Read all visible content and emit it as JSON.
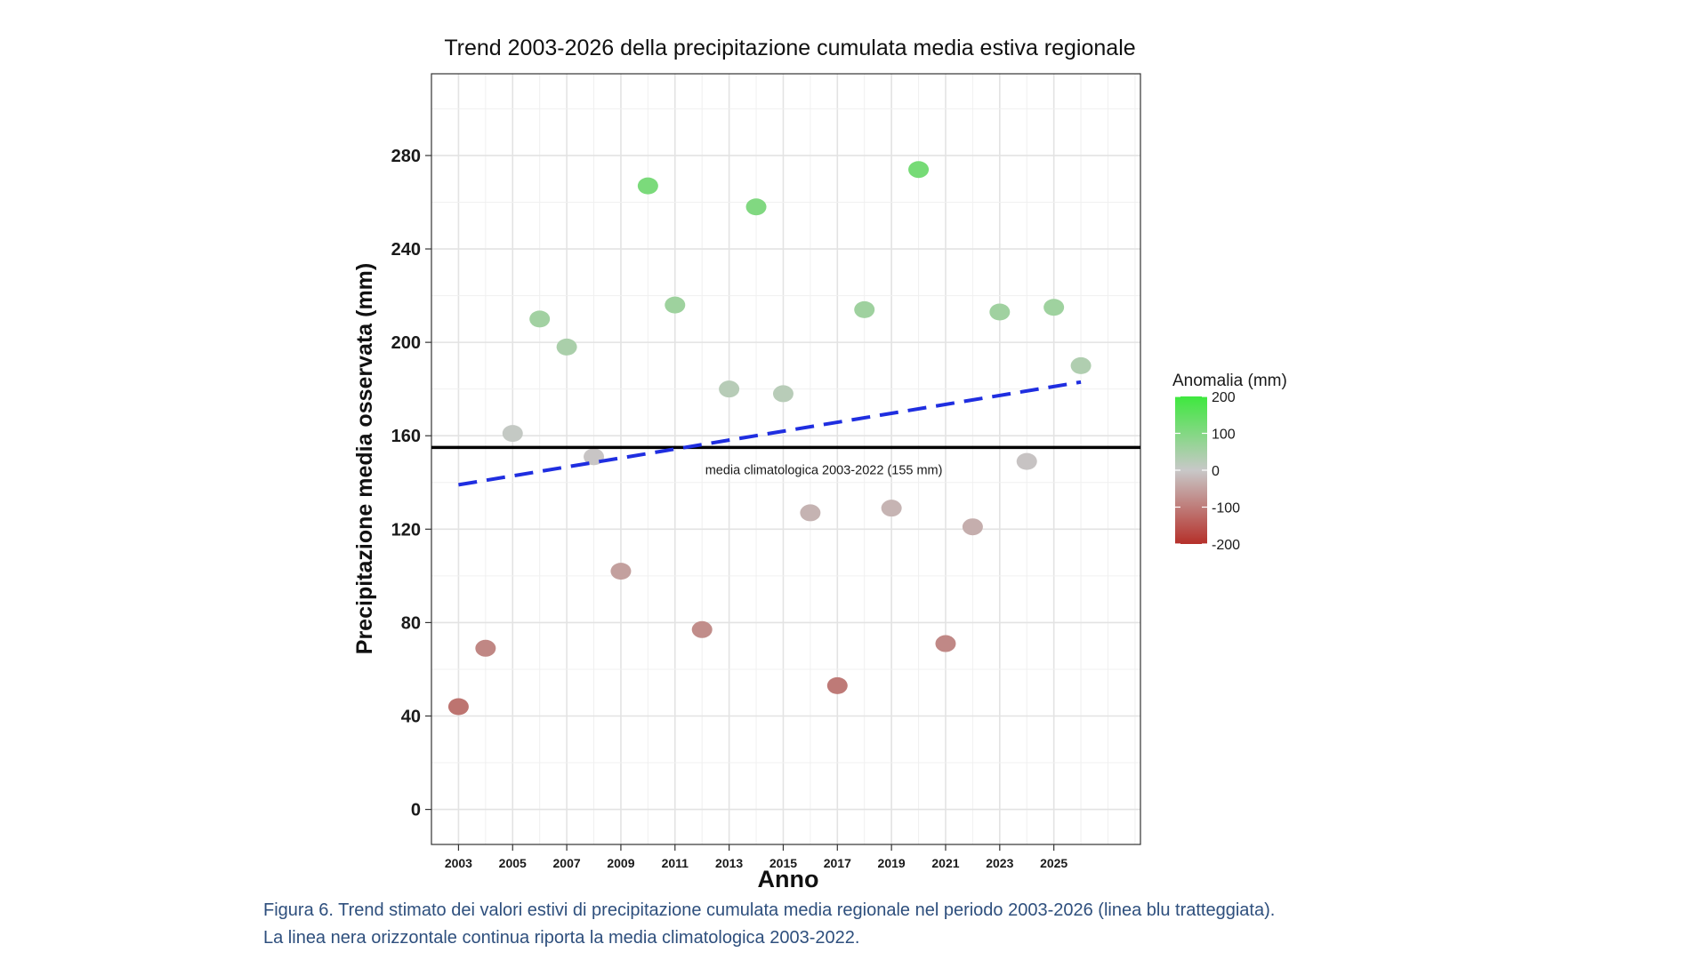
{
  "chart_data": {
    "type": "scatter",
    "title": "Trend 2003-2026 della precipitazione cumulata media estiva regionale",
    "xlabel": "Anno",
    "ylabel": "Precipitazione media osservata (mm)",
    "xlim": [
      2002,
      2028.2
    ],
    "ylim": [
      -15,
      315
    ],
    "x_ticks": [
      2003,
      2005,
      2007,
      2009,
      2011,
      2013,
      2015,
      2017,
      2019,
      2021,
      2023,
      2025
    ],
    "y_ticks": [
      0,
      40,
      80,
      120,
      160,
      200,
      240,
      280
    ],
    "grid": true,
    "points": [
      {
        "year": 2003,
        "value": 44
      },
      {
        "year": 2004,
        "value": 69
      },
      {
        "year": 2005,
        "value": 161
      },
      {
        "year": 2006,
        "value": 210
      },
      {
        "year": 2007,
        "value": 198
      },
      {
        "year": 2008,
        "value": 151
      },
      {
        "year": 2009,
        "value": 102
      },
      {
        "year": 2010,
        "value": 267
      },
      {
        "year": 2011,
        "value": 216
      },
      {
        "year": 2012,
        "value": 77
      },
      {
        "year": 2013,
        "value": 180
      },
      {
        "year": 2014,
        "value": 258
      },
      {
        "year": 2015,
        "value": 178
      },
      {
        "year": 2016,
        "value": 127
      },
      {
        "year": 2017,
        "value": 53
      },
      {
        "year": 2018,
        "value": 214
      },
      {
        "year": 2019,
        "value": 129
      },
      {
        "year": 2020,
        "value": 274
      },
      {
        "year": 2021,
        "value": 71
      },
      {
        "year": 2022,
        "value": 121
      },
      {
        "year": 2023,
        "value": 213
      },
      {
        "year": 2024,
        "value": 149
      },
      {
        "year": 2025,
        "value": 215
      },
      {
        "year": 2026,
        "value": 190
      }
    ],
    "reference_line": {
      "value": 155,
      "label": "media climatologica 2003-2022 (155 mm)",
      "color": "#000000"
    },
    "trend_line": {
      "x": [
        2003,
        2026
      ],
      "y": [
        139,
        183
      ],
      "color": "#1f2ee0",
      "style": "dashed"
    },
    "legend": {
      "title": "Anomalia (mm)",
      "position": "right",
      "ticks": [
        200,
        100,
        0,
        -100,
        -200
      ],
      "tick_labels": [
        "200",
        "100",
        "0",
        "-100",
        "-200"
      ],
      "colors": {
        "high": "#3ee83e",
        "mid": "#c8c8c8",
        "low": "#b5302a"
      }
    }
  },
  "caption": {
    "line1": "Figura 6. Trend stimato dei valori estivi di precipitazione cumulata media regionale nel periodo 2003-2026 (linea blu tratteggiata).",
    "line2": "La linea nera orizzontale continua riporta la media climatologica 2003-2022."
  }
}
